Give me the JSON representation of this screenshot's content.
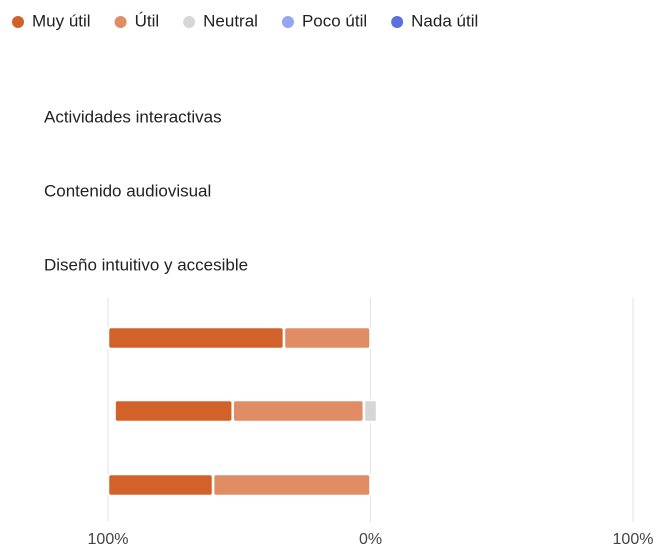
{
  "chart_data": {
    "type": "diverging_bar",
    "categories": [
      "Actividades interactivas",
      "Contenido audiovisual",
      "Diseño intuitivo y accesible"
    ],
    "series": [
      {
        "name": "Muy útil",
        "color": "#d2622a",
        "values": [
          67,
          45,
          40
        ]
      },
      {
        "name": "Útil",
        "color": "#e08d65",
        "values": [
          33,
          50,
          60
        ]
      },
      {
        "name": "Neutral",
        "color": "#d6d6d6",
        "values": [
          0,
          5,
          0
        ]
      },
      {
        "name": "Poco útil",
        "color": "#94a6f2",
        "values": [
          0,
          0,
          0
        ]
      },
      {
        "name": "Nada útil",
        "color": "#5b6fe0",
        "values": [
          0,
          0,
          0
        ]
      }
    ],
    "xlim": [
      -100,
      100
    ],
    "xticks": [
      {
        "value": -100,
        "label": "100%"
      },
      {
        "value": 0,
        "label": "0%"
      },
      {
        "value": 100,
        "label": "100%"
      }
    ],
    "grid": true,
    "legend": "top"
  }
}
